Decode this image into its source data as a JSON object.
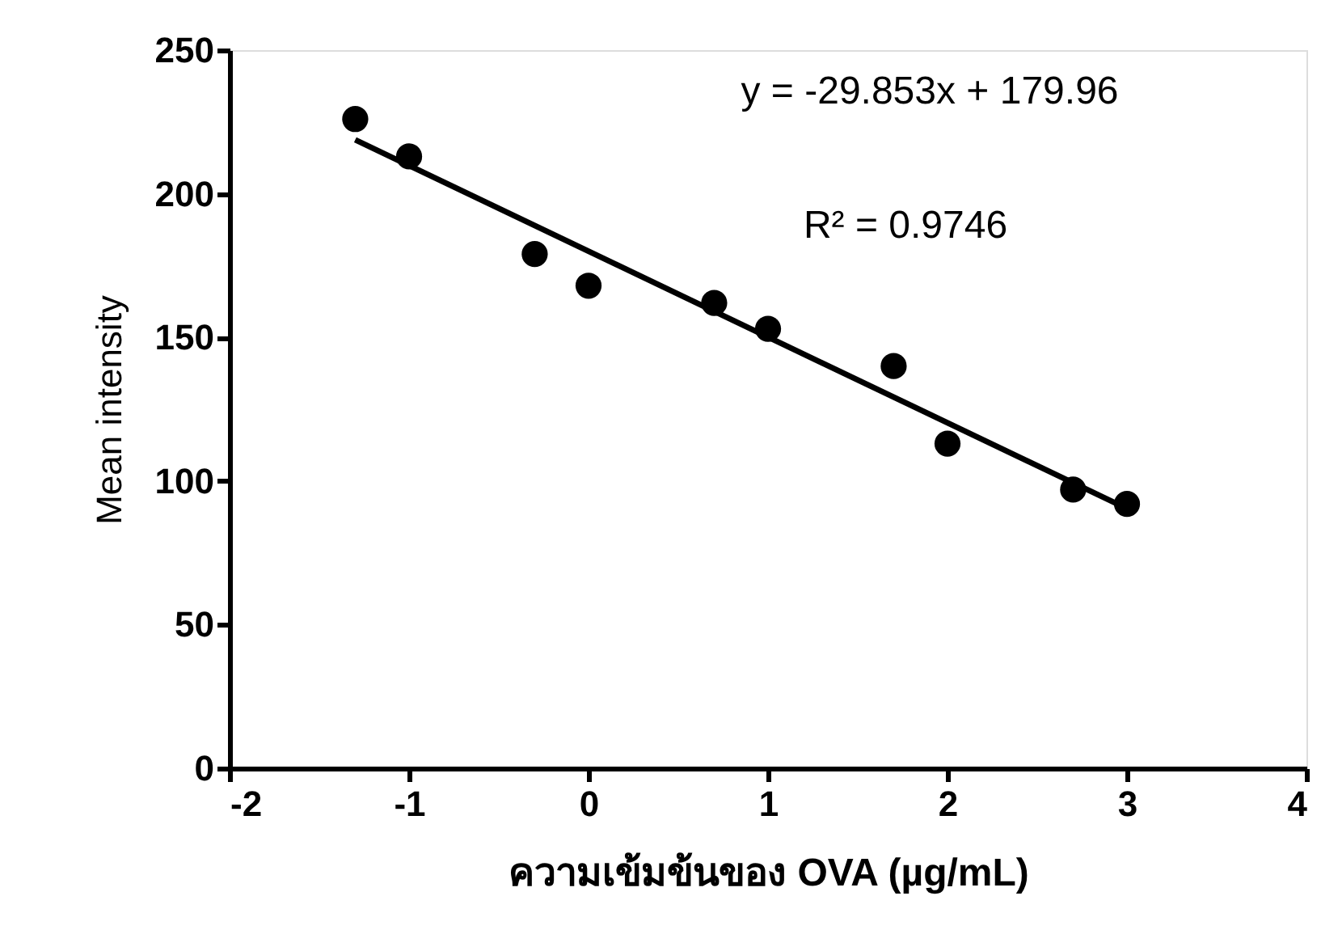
{
  "chart_data": {
    "type": "scatter",
    "xlabel": "ความเข้มข้นของ OVA (µg/mL)",
    "ylabel": "Mean intensity",
    "annotations": [
      "y = -29.853x + 179.96",
      "R² = 0.9746"
    ],
    "xlim": [
      -2,
      4
    ],
    "xticks": [
      -2,
      -1,
      0,
      1,
      2,
      3,
      4
    ],
    "ylim": [
      0,
      250
    ],
    "yticks": [
      0,
      50,
      100,
      150,
      200,
      250
    ],
    "grid": false,
    "series": [
      {
        "color": "#000000",
        "marker": "circle",
        "x": [
          -1.3,
          -1,
          -0.3,
          0,
          0.7,
          1,
          1.7,
          2,
          2.7,
          3
        ],
        "values": [
          226,
          213,
          179,
          168,
          162,
          153,
          140,
          113,
          97,
          92
        ]
      },
      {
        "type": "line",
        "color": "#000000",
        "x": [
          -1.3,
          3
        ],
        "values": [
          218.8,
          90.4
        ],
        "line_style": "solid"
      }
    ]
  }
}
